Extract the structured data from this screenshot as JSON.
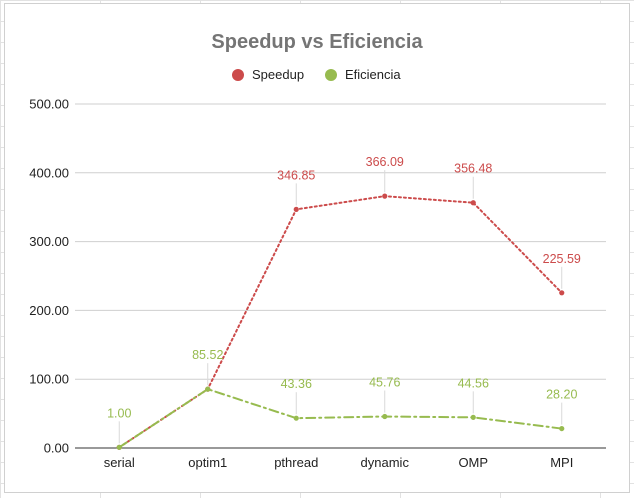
{
  "chart_data": {
    "type": "line",
    "title": "Speedup vs Eficiencia",
    "categories": [
      "serial",
      "optim1",
      "pthread",
      "dynamic",
      "OMP",
      "MPI"
    ],
    "series": [
      {
        "name": "Speedup",
        "color": "#cc4b4b",
        "line_style": "dotted",
        "values": [
          1.0,
          85.52,
          346.85,
          366.09,
          356.48,
          225.59
        ],
        "labels": [
          "",
          "",
          "346.85",
          "366.09",
          "356.48",
          "225.59"
        ]
      },
      {
        "name": "Eficiencia",
        "color": "#97bb4f",
        "line_style": "dash-dot",
        "values": [
          1.0,
          85.52,
          43.36,
          45.76,
          44.56,
          28.2
        ],
        "labels": [
          "1.00",
          "85.52",
          "43.36",
          "45.76",
          "44.56",
          "28.20"
        ]
      }
    ],
    "ylim": [
      0,
      500
    ],
    "yticks": [
      "0.00",
      "100.00",
      "200.00",
      "300.00",
      "400.00",
      "500.00"
    ],
    "xlabel": "",
    "ylabel": "",
    "grid": true,
    "legend_position": "top"
  }
}
